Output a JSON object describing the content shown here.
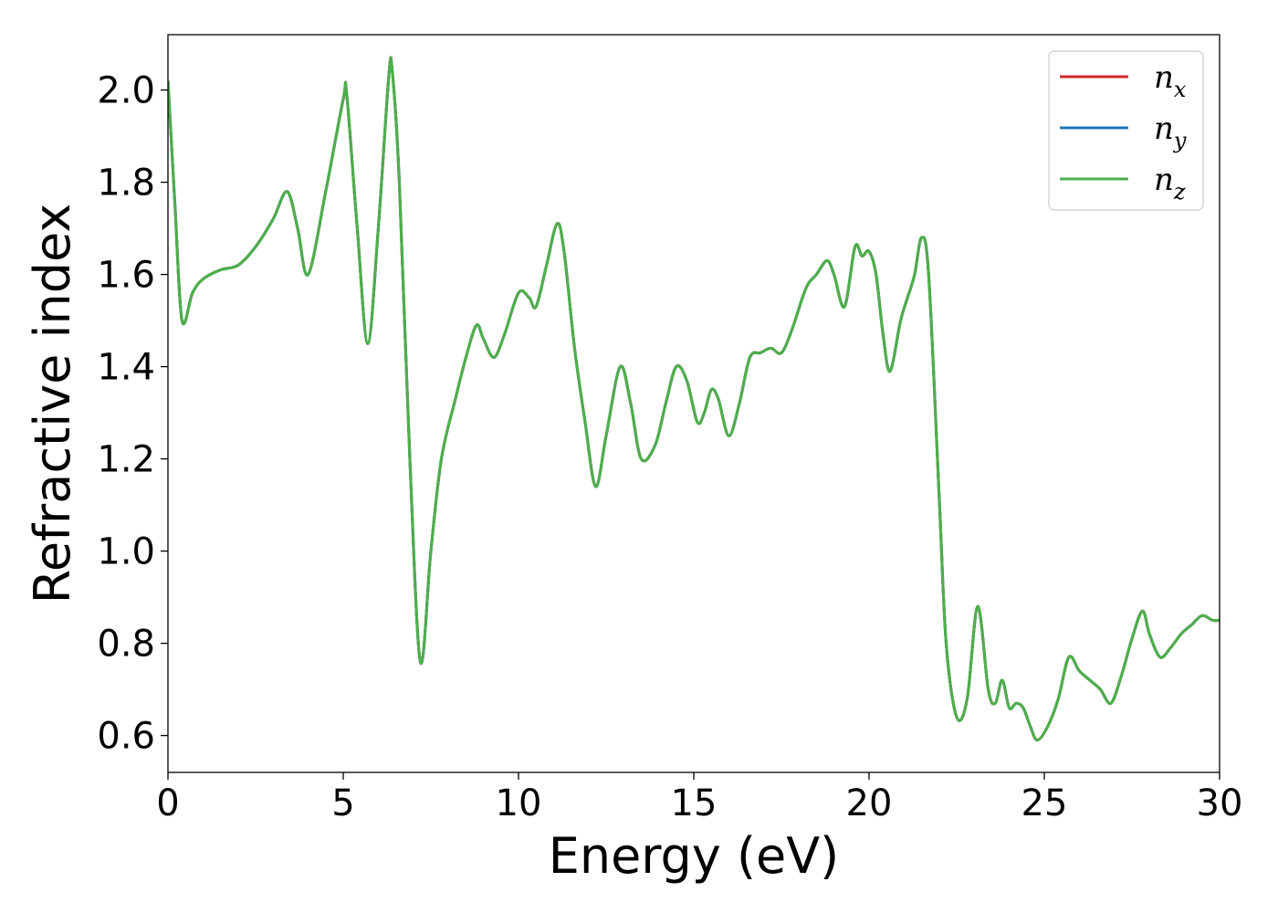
{
  "chart_data": {
    "type": "line",
    "xlabel": "Energy (eV)",
    "ylabel": "Refractive index",
    "xlim": [
      0,
      30
    ],
    "ylim": [
      0.52,
      2.12
    ],
    "xticks": [
      0,
      5,
      10,
      15,
      20,
      25,
      30
    ],
    "xtick_labels": [
      "0",
      "5",
      "10",
      "15",
      "20",
      "25",
      "30"
    ],
    "yticks": [
      0.6,
      0.8,
      1.0,
      1.2,
      1.4,
      1.6,
      1.8,
      2.0
    ],
    "ytick_labels": [
      "0.6",
      "0.8",
      "1.0",
      "1.2",
      "1.4",
      "1.6",
      "1.8",
      "2.0"
    ],
    "grid": false,
    "legend_position": "top-right",
    "x": [
      0,
      0.2,
      0.4,
      0.7,
      1.0,
      1.5,
      2.0,
      2.5,
      3.0,
      3.4,
      3.7,
      4.0,
      4.5,
      5.0,
      5.1,
      5.4,
      5.7,
      6.0,
      6.3,
      6.4,
      6.6,
      6.9,
      7.2,
      7.5,
      7.8,
      8.2,
      8.5,
      8.8,
      9.0,
      9.3,
      9.6,
      10.0,
      10.3,
      10.5,
      10.8,
      11.1,
      11.3,
      11.6,
      11.9,
      12.2,
      12.5,
      12.9,
      13.2,
      13.5,
      13.9,
      14.2,
      14.5,
      14.8,
      15.1,
      15.3,
      15.5,
      15.7,
      16.0,
      16.3,
      16.6,
      16.9,
      17.2,
      17.5,
      17.8,
      18.2,
      18.5,
      18.8,
      19.0,
      19.3,
      19.6,
      19.8,
      20.0,
      20.2,
      20.4,
      20.6,
      20.9,
      21.1,
      21.3,
      21.5,
      21.7,
      22.0,
      22.2,
      22.5,
      22.8,
      23.1,
      23.4,
      23.6,
      23.8,
      24.0,
      24.2,
      24.4,
      24.6,
      24.8,
      25.1,
      25.4,
      25.7,
      26.0,
      26.3,
      26.6,
      26.9,
      27.2,
      27.5,
      27.8,
      28.0,
      28.3,
      28.6,
      28.9,
      29.2,
      29.5,
      29.8,
      30.0
    ],
    "series": [
      {
        "name": "n_x",
        "color": "#d62728"
      },
      {
        "name": "n_y",
        "color": "#1f77b4"
      },
      {
        "name": "n_z",
        "color": "#4daf4a"
      }
    ],
    "values": [
      2.02,
      1.75,
      1.5,
      1.56,
      1.59,
      1.61,
      1.62,
      1.66,
      1.72,
      1.78,
      1.7,
      1.6,
      1.78,
      1.98,
      1.99,
      1.7,
      1.45,
      1.7,
      2.03,
      2.04,
      1.8,
      1.2,
      0.76,
      1.0,
      1.2,
      1.33,
      1.42,
      1.49,
      1.46,
      1.42,
      1.47,
      1.56,
      1.55,
      1.53,
      1.62,
      1.71,
      1.65,
      1.44,
      1.28,
      1.14,
      1.25,
      1.4,
      1.32,
      1.2,
      1.23,
      1.32,
      1.4,
      1.37,
      1.28,
      1.3,
      1.35,
      1.33,
      1.25,
      1.32,
      1.42,
      1.43,
      1.44,
      1.43,
      1.48,
      1.57,
      1.6,
      1.63,
      1.6,
      1.53,
      1.66,
      1.64,
      1.65,
      1.6,
      1.47,
      1.39,
      1.5,
      1.55,
      1.6,
      1.68,
      1.6,
      1.12,
      0.8,
      0.64,
      0.68,
      0.88,
      0.7,
      0.67,
      0.72,
      0.66,
      0.67,
      0.66,
      0.62,
      0.59,
      0.62,
      0.68,
      0.77,
      0.74,
      0.72,
      0.7,
      0.67,
      0.73,
      0.81,
      0.87,
      0.82,
      0.77,
      0.79,
      0.82,
      0.84,
      0.86,
      0.85,
      0.85
    ]
  },
  "legend": {
    "entries": [
      {
        "sym": "n",
        "sub": "x",
        "color": "#d62728"
      },
      {
        "sym": "n",
        "sub": "y",
        "color": "#1f77b4"
      },
      {
        "sym": "n",
        "sub": "z",
        "color": "#4daf4a"
      }
    ]
  }
}
